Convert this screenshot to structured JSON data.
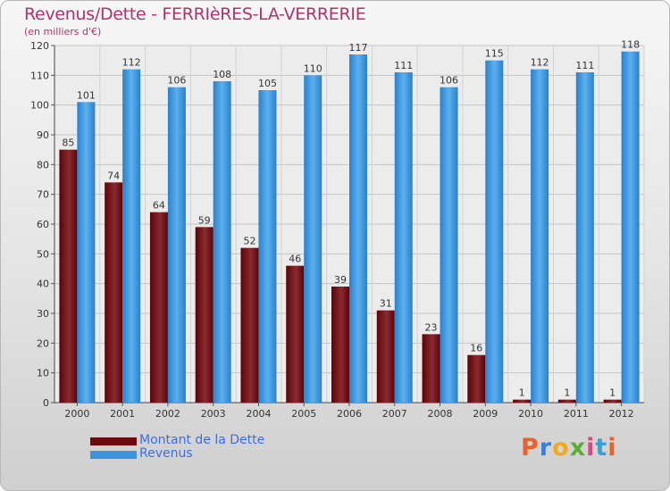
{
  "chart_data": {
    "type": "bar",
    "title": "Revenus/Dette - FERRIèRES-LA-VERRERIE",
    "subtitle": "(en milliers d'€)",
    "categories": [
      "2000",
      "2001",
      "2002",
      "2003",
      "2004",
      "2005",
      "2006",
      "2007",
      "2008",
      "2009",
      "2010",
      "2011",
      "2012"
    ],
    "series": [
      {
        "name": "Montant de la Dette",
        "values": [
          85,
          74,
          64,
          59,
          52,
          46,
          39,
          31,
          23,
          16,
          1,
          1,
          1
        ],
        "color": "#6b0b10"
      },
      {
        "name": "Revenus",
        "values": [
          101,
          112,
          106,
          108,
          105,
          110,
          117,
          111,
          106,
          115,
          112,
          111,
          118
        ],
        "color": "#3a93dc"
      }
    ],
    "ylim": [
      0,
      120
    ],
    "yticks": [
      0,
      10,
      20,
      30,
      40,
      50,
      60,
      70,
      80,
      90,
      100,
      110,
      120
    ],
    "xlabel": "",
    "ylabel": "",
    "grid": true,
    "legend_position": "bottom-left"
  },
  "logo": {
    "text": "Proxiti",
    "colors": [
      "#e8622a",
      "#3a7fd8",
      "#f2a81c",
      "#5bb031",
      "#d64b7e",
      "#3a9fd8",
      "#e8622a"
    ]
  }
}
